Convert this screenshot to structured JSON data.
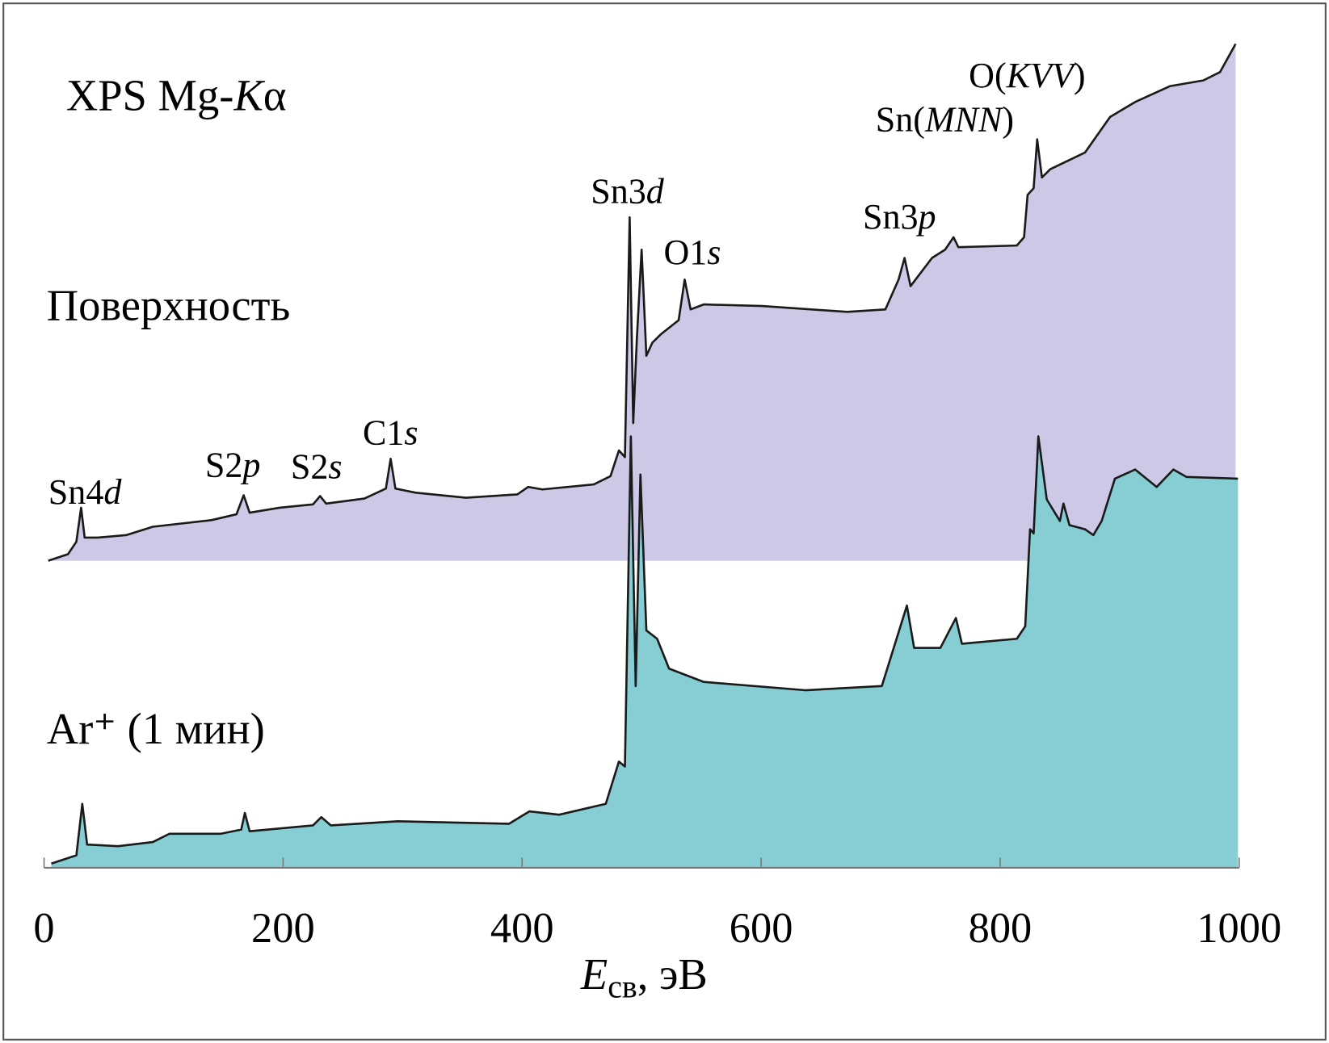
{
  "chart_data": {
    "type": "area",
    "title": [
      "XPS Mg-",
      "K",
      "α"
    ],
    "x_label": [
      "E",
      "св",
      ", эВ"
    ],
    "xlim": [
      0,
      1000
    ],
    "xticks": [
      0,
      200,
      400,
      600,
      800,
      1000
    ],
    "ylim": [
      0,
      100
    ],
    "series": [
      {
        "name": "Поверхность",
        "color": "#cdc8e6",
        "baseline": 37,
        "x": [
          3.5,
          20,
          27,
          31,
          34,
          45,
          69,
          91,
          140,
          161,
          167,
          172,
          197,
          225,
          231,
          236,
          268,
          286,
          290,
          294,
          311,
          353,
          396,
          405,
          417,
          460,
          474,
          481,
          486,
          490,
          493,
          496,
          500,
          504,
          509,
          516,
          531,
          536,
          541,
          552,
          601,
          672,
          704,
          715,
          720,
          725,
          743,
          754,
          761,
          765,
          814,
          820,
          823,
          828,
          831,
          835,
          842,
          871,
          892,
          913,
          942,
          970,
          984,
          997
        ],
        "values": [
          37.0,
          37.8,
          39.3,
          43.4,
          39.8,
          39.8,
          40.1,
          41.1,
          41.9,
          42.6,
          44.9,
          42.8,
          43.4,
          43.8,
          44.8,
          43.9,
          44.5,
          45.7,
          49.3,
          45.7,
          45.2,
          44.6,
          45.0,
          45.9,
          45.6,
          46.2,
          47.2,
          50.3,
          49.5,
          78.4,
          53.6,
          63.8,
          74.5,
          61.7,
          63.3,
          64.3,
          66.0,
          70.9,
          67.3,
          67.9,
          67.7,
          67.0,
          67.3,
          70.9,
          73.5,
          70.1,
          73.5,
          74.5,
          76.0,
          74.8,
          75.0,
          76.0,
          81.1,
          81.9,
          87.8,
          83.2,
          84.2,
          86.2,
          90.5,
          92.3,
          94.2,
          94.9,
          95.9,
          99.3
        ]
      },
      {
        "name": "Ar⁺ (1 мин)",
        "color": "#86ced4",
        "baseline": 0,
        "x": [
          6,
          27,
          32,
          36,
          62,
          91,
          105,
          148,
          165,
          168,
          172,
          225,
          232,
          240,
          296,
          389,
          406,
          431,
          470,
          481,
          486,
          491,
          495,
          499,
          504,
          513,
          523,
          552,
          637,
          701,
          722,
          728,
          750,
          763,
          768,
          814,
          821,
          825,
          828,
          832,
          839,
          850,
          853,
          858,
          871,
          878,
          885,
          896,
          913,
          931,
          945,
          956,
          999
        ],
        "values": [
          0.5,
          1.5,
          7.7,
          2.8,
          2.6,
          3.1,
          4.1,
          4.1,
          4.6,
          6.6,
          4.4,
          5.1,
          6.1,
          5.1,
          5.6,
          5.3,
          6.8,
          6.4,
          7.7,
          12.8,
          12.2,
          52.0,
          21.9,
          47.4,
          28.6,
          27.6,
          24.0,
          22.4,
          21.4,
          21.9,
          31.6,
          26.5,
          26.5,
          30.1,
          27.0,
          27.6,
          29.1,
          40.8,
          40.3,
          52.0,
          44.4,
          41.8,
          43.9,
          41.3,
          40.8,
          40.1,
          41.8,
          46.9,
          48.0,
          45.9,
          48.0,
          47.1,
          46.9
        ]
      }
    ],
    "annotations": [
      [
        "Sn4",
        "d"
      ],
      [
        "S2",
        "p"
      ],
      [
        "S2",
        "s"
      ],
      [
        "C1",
        "s"
      ],
      [
        "Sn3",
        "d"
      ],
      [
        "O1",
        "s"
      ],
      [
        "Sn3",
        "p"
      ],
      [
        "Sn(",
        "MNN",
        ")"
      ],
      [
        "O(",
        "KVV",
        ")"
      ]
    ]
  }
}
